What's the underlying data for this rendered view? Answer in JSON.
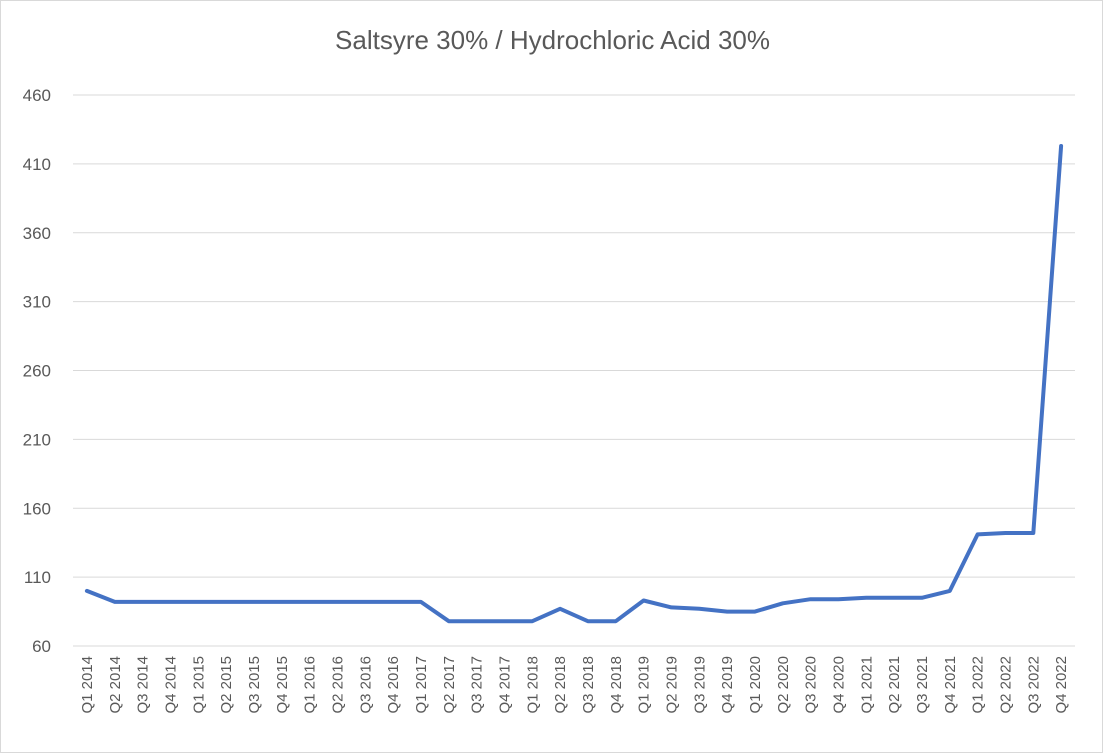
{
  "chart_data": {
    "type": "line",
    "title": "Saltsyre 30% / Hydrochloric Acid 30%",
    "xlabel": "",
    "ylabel": "",
    "ylim": [
      60,
      460
    ],
    "yticks": [
      "60",
      "110",
      "160",
      "210",
      "260",
      "310",
      "360",
      "410",
      "460"
    ],
    "grid": true,
    "legend": "none",
    "series_color": "#4472c4",
    "categories": [
      "Q1 2014",
      "Q2 2014",
      "Q3 2014",
      "Q4 2014",
      "Q1 2015",
      "Q2 2015",
      "Q3 2015",
      "Q4 2015",
      "Q1 2016",
      "Q2 2016",
      "Q3 2016",
      "Q4 2016",
      "Q1 2017",
      "Q2 2017",
      "Q3 2017",
      "Q4 2017",
      "Q1 2018",
      "Q2 2018",
      "Q3 2018",
      "Q4 2018",
      "Q1 2019",
      "Q2 2019",
      "Q3 2019",
      "Q4 2019",
      "Q1 2020",
      "Q2 2020",
      "Q3 2020",
      "Q4 2020",
      "Q1 2021",
      "Q2 2021",
      "Q3 2021",
      "Q4 2021",
      "Q1 2022",
      "Q2 2022",
      "Q3 2022",
      "Q4 2022"
    ],
    "series": [
      {
        "values": [
          100,
          92,
          92,
          92,
          92,
          92,
          92,
          92,
          92,
          92,
          92,
          92,
          92,
          78,
          78,
          78,
          78,
          87,
          78,
          78,
          93,
          88,
          87,
          85,
          85,
          91,
          94,
          94,
          95,
          95,
          95,
          100,
          141,
          142,
          142,
          423
        ]
      }
    ]
  }
}
